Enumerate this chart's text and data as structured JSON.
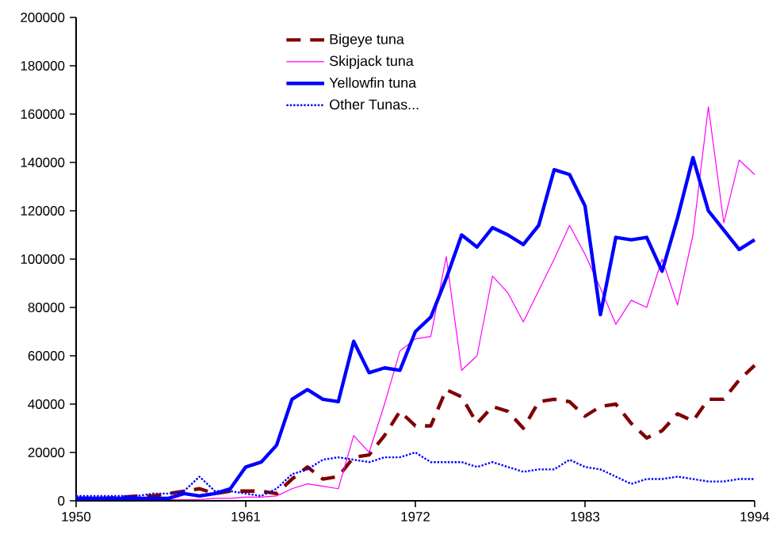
{
  "chart_data": {
    "type": "line",
    "x": [
      1950,
      1951,
      1952,
      1953,
      1954,
      1955,
      1956,
      1957,
      1958,
      1959,
      1960,
      1961,
      1962,
      1963,
      1964,
      1965,
      1966,
      1967,
      1968,
      1969,
      1970,
      1971,
      1972,
      1973,
      1974,
      1975,
      1976,
      1977,
      1978,
      1979,
      1980,
      1981,
      1982,
      1983,
      1984,
      1985,
      1986,
      1987,
      1988,
      1989,
      1990,
      1991,
      1992,
      1993,
      1994
    ],
    "series": [
      {
        "name": "Bigeye tuna",
        "color": "#800000",
        "line_style": "dashed",
        "values": [
          1000,
          1000,
          1000,
          1500,
          2000,
          2000,
          3000,
          4000,
          5000,
          3000,
          4000,
          4000,
          4000,
          3000,
          9000,
          14000,
          9000,
          10000,
          18000,
          19000,
          27000,
          37000,
          31000,
          31000,
          46000,
          43000,
          32000,
          39000,
          37000,
          30000,
          41000,
          42000,
          41000,
          35000,
          39000,
          40000,
          32000,
          26000,
          29000,
          36000,
          33000,
          42000,
          42000,
          50000,
          56000
        ]
      },
      {
        "name": "Skipjack tuna",
        "color": "#ff00ff",
        "line_style": "solid",
        "values": [
          null,
          null,
          null,
          null,
          null,
          null,
          500,
          500,
          500,
          1000,
          1000,
          1500,
          1500,
          2000,
          5000,
          7000,
          6000,
          5000,
          27000,
          20000,
          40000,
          62000,
          67000,
          68000,
          101000,
          54000,
          60000,
          93000,
          86000,
          74000,
          87000,
          100000,
          114000,
          102000,
          88000,
          73000,
          83000,
          80000,
          100000,
          81000,
          110000,
          163000,
          115000,
          141000,
          135000
        ]
      },
      {
        "name": "Yellowfin tuna",
        "color": "#0000ff",
        "line_style": "solid",
        "values": [
          1000,
          1000,
          1000,
          1000,
          1000,
          1000,
          1000,
          3000,
          2000,
          3000,
          5000,
          14000,
          16000,
          23000,
          42000,
          46000,
          42000,
          41000,
          66000,
          53000,
          55000,
          54000,
          70000,
          76000,
          92000,
          110000,
          105000,
          113000,
          110000,
          106000,
          114000,
          137000,
          135000,
          122000,
          77000,
          109000,
          108000,
          109000,
          95000,
          117000,
          142000,
          120000,
          112000,
          104000,
          108000
        ]
      },
      {
        "name": "Other Tunas...",
        "color": "#0000ff",
        "line_style": "dotted",
        "values": [
          2000,
          2000,
          2000,
          2000,
          2000,
          3000,
          3000,
          4000,
          10000,
          4000,
          4000,
          3000,
          2000,
          5000,
          11000,
          13000,
          17000,
          18000,
          17000,
          16000,
          18000,
          18000,
          20000,
          16000,
          16000,
          16000,
          14000,
          16000,
          14000,
          12000,
          13000,
          13000,
          17000,
          14000,
          13000,
          10000,
          7000,
          9000,
          9000,
          10000,
          9000,
          8000,
          8000,
          9000,
          9000
        ]
      }
    ],
    "xlim": [
      1950,
      1994
    ],
    "ylim": [
      0,
      200000
    ],
    "xticks": [
      1950,
      1961,
      1972,
      1983,
      1994
    ],
    "yticks": [
      0,
      20000,
      40000,
      60000,
      80000,
      100000,
      120000,
      140000,
      160000,
      180000,
      200000
    ],
    "grid": false,
    "legend": "top",
    "marker": "none"
  }
}
